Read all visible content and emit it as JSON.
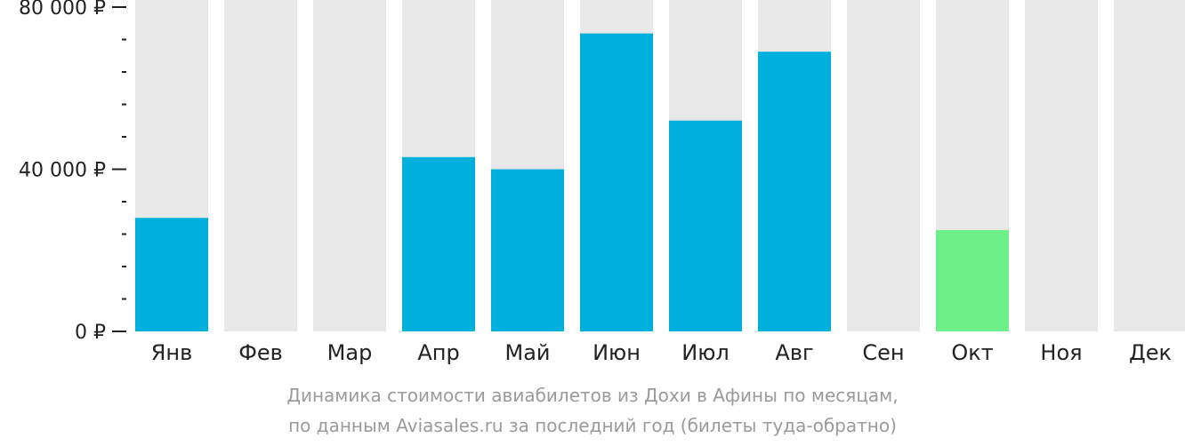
{
  "chart_data": {
    "type": "bar",
    "categories": [
      "Янв",
      "Фев",
      "Мар",
      "Апр",
      "Май",
      "Июн",
      "Июл",
      "Авг",
      "Сен",
      "Окт",
      "Ноя",
      "Дек"
    ],
    "values": [
      28000,
      null,
      null,
      43000,
      40000,
      73500,
      52000,
      69000,
      null,
      25000,
      null,
      null
    ],
    "highlight_category": "Окт",
    "ylim": [
      0,
      80000
    ],
    "yticks": [
      {
        "value": 0,
        "label": "0 ₽"
      },
      {
        "value": 40000,
        "label": "40 000 ₽"
      },
      {
        "value": 80000,
        "label": "80 000 ₽"
      }
    ],
    "minor_tick_step": 8000,
    "grid": false,
    "legend": "none",
    "colors": {
      "bar": "#00b0dc",
      "highlight": "#6cf087",
      "background_bar": "#e8e8e8",
      "axis": "#222222"
    }
  },
  "caption": {
    "line1": "Динамика стоимости авиабилетов из Дохи в Афины по месяцам,",
    "line2": "по данным Aviasales.ru за последний год (билеты туда-обратно)"
  }
}
